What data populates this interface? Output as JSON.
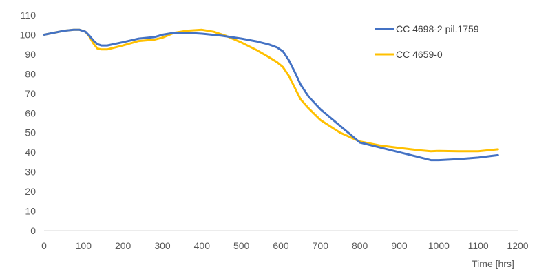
{
  "chart_data": {
    "type": "line",
    "title": "",
    "xlabel": "Time [hrs]",
    "ylabel": "",
    "xlim": [
      0,
      1200
    ],
    "ylim": [
      0,
      110
    ],
    "x_ticks": [
      0,
      100,
      200,
      300,
      400,
      500,
      600,
      700,
      800,
      900,
      1000,
      1100,
      1200
    ],
    "y_ticks": [
      0,
      10,
      20,
      30,
      40,
      50,
      60,
      70,
      80,
      90,
      100,
      110
    ],
    "grid": false,
    "legend_position": "top-right",
    "series": [
      {
        "name": "CC 4698-2 pil.1759",
        "color": "#4472C4",
        "x": [
          0,
          25,
          50,
          75,
          90,
          105,
          115,
          125,
          135,
          145,
          160,
          200,
          240,
          280,
          300,
          330,
          360,
          400,
          450,
          500,
          540,
          570,
          590,
          605,
          620,
          635,
          650,
          670,
          700,
          750,
          800,
          850,
          900,
          950,
          980,
          1000,
          1050,
          1100,
          1150
        ],
        "y": [
          100,
          101,
          102,
          102.5,
          102.5,
          101.5,
          99.5,
          97,
          95.2,
          94.5,
          94.5,
          96.2,
          98,
          98.8,
          100,
          101,
          101,
          100.5,
          99.5,
          98,
          96.5,
          95,
          93.5,
          91.5,
          87,
          81,
          74.5,
          68.5,
          62,
          53.5,
          45,
          42.5,
          40,
          37.5,
          36,
          36,
          36.5,
          37.3,
          38.5
        ]
      },
      {
        "name": "CC 4659-0",
        "color": "#FFC000",
        "x": [
          0,
          25,
          50,
          75,
          90,
          105,
          115,
          125,
          135,
          145,
          160,
          200,
          240,
          280,
          300,
          330,
          360,
          400,
          430,
          460,
          500,
          540,
          570,
          590,
          605,
          620,
          635,
          650,
          670,
          700,
          750,
          800,
          850,
          900,
          950,
          980,
          1000,
          1050,
          1100,
          1150
        ],
        "y": [
          100,
          101,
          102,
          102.5,
          102.5,
          101.5,
          99,
          95.5,
          93,
          92.5,
          92.5,
          94.5,
          96.8,
          97.5,
          98.5,
          101,
          102,
          102.5,
          101.5,
          99.5,
          96,
          92,
          88.5,
          86,
          83.5,
          79,
          73,
          67,
          62.5,
          56.5,
          50,
          45.5,
          43.5,
          42.2,
          41,
          40.5,
          40.7,
          40.5,
          40.5,
          41.5
        ]
      }
    ]
  }
}
